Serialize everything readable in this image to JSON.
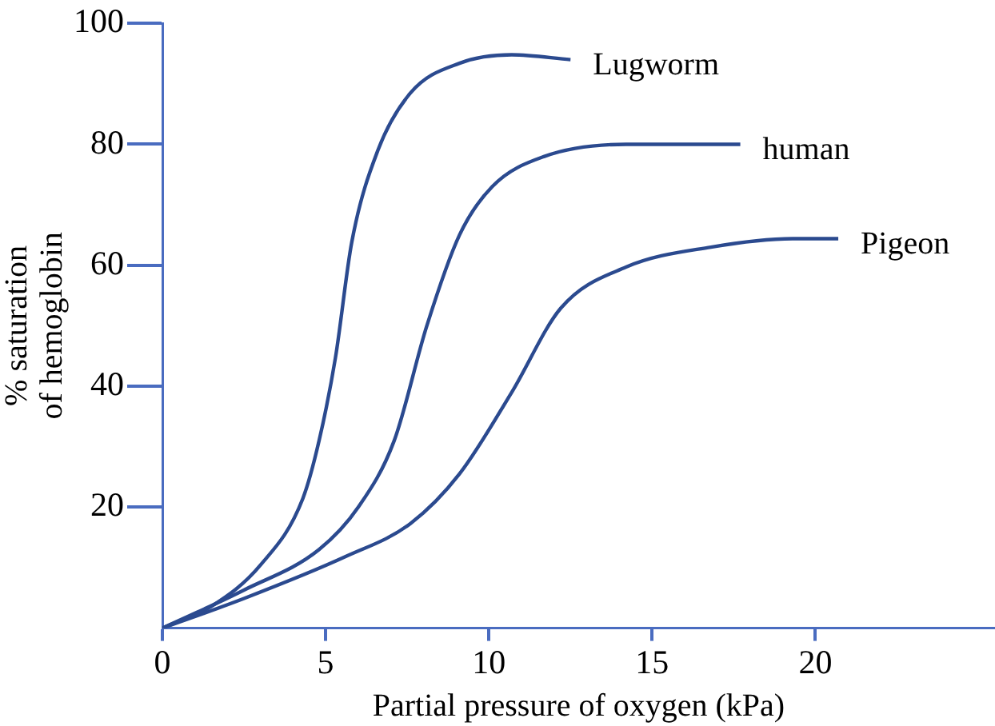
{
  "chart_data": {
    "type": "line",
    "xlabel": "Partial pressure of oxygen (kPa)",
    "ylabel": "% saturation of hemoglobin",
    "xlim": [
      0,
      25.5
    ],
    "xticks": [
      0,
      5,
      10,
      15,
      20
    ],
    "ylim": [
      0,
      100
    ],
    "yticks": [
      20,
      40,
      60,
      80,
      100
    ],
    "grid": false,
    "legend": false,
    "marker": "none",
    "line_style": "solid",
    "series": [
      {
        "name": "Lugworm",
        "color": "#2b4a8f",
        "x": [
          0,
          1.5,
          3,
          4.3,
          4.8,
          5.3,
          5.8,
          6.6,
          7.6,
          9.1,
          10.7,
          12.5
        ],
        "values": [
          0,
          3.6,
          10.4,
          21.4,
          31,
          44.7,
          63.8,
          79,
          88.5,
          93.4,
          94.8,
          94
        ]
      },
      {
        "name": "human",
        "color": "#2b4a8f",
        "x": [
          0,
          2.5,
          4.8,
          6,
          7.1,
          8.1,
          9.1,
          10.1,
          11.7,
          14.2,
          17.7
        ],
        "values": [
          0,
          6.3,
          13,
          20,
          31,
          50,
          65,
          73,
          78,
          80,
          80
        ]
      },
      {
        "name": "Pigeon",
        "color": "#2b4a8f",
        "x": [
          0,
          2.5,
          5.6,
          7.6,
          9.1,
          10.7,
          12.2,
          14.2,
          16.8,
          19.3,
          20.7
        ],
        "values": [
          0,
          4.9,
          11.8,
          17.3,
          25.5,
          39,
          52.9,
          59.7,
          63,
          64.4,
          64.4
        ]
      }
    ]
  }
}
